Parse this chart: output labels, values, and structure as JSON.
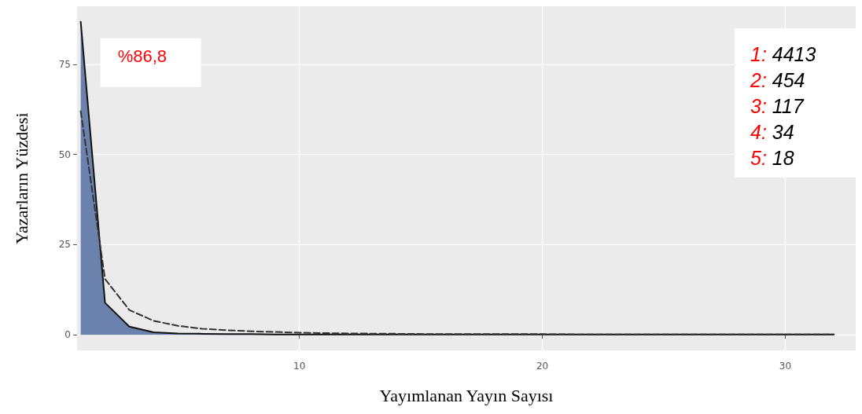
{
  "chart_data": {
    "type": "area",
    "xlabel": "Yayımlanan Yayın Sayısı",
    "ylabel": "Yazarların Yüzdesi",
    "x": [
      1,
      2,
      3,
      4,
      5,
      6,
      7,
      8,
      9,
      10,
      12,
      14,
      16,
      18,
      20,
      22,
      24,
      26,
      28,
      30,
      32
    ],
    "series": [
      {
        "color": "#6b82ad",
        "line_style": "solid",
        "values": [
          86.8,
          8.9,
          2.3,
          0.7,
          0.4,
          0.3,
          0.2,
          0.2,
          0.1,
          0.1,
          0.1,
          0.1,
          0.1,
          0.1,
          0.1,
          0.1,
          0.1,
          0.1,
          0.1,
          0.1,
          0.1
        ]
      },
      {
        "type": "line",
        "color": "#333333",
        "line_style": "dashed",
        "values": [
          62,
          15.5,
          6.9,
          3.9,
          2.5,
          1.7,
          1.3,
          1,
          0.8,
          0.6,
          0.4,
          0.3,
          0.2,
          0.2,
          0.2,
          0.1,
          0.1,
          0.1,
          0.1,
          0.1,
          0.1
        ]
      }
    ],
    "xlim": [
      0.85,
      32.9
    ],
    "xticks": [
      10,
      20,
      30
    ],
    "ylim": [
      -4.3,
      91.1
    ],
    "yticks": [
      0,
      25,
      50,
      75
    ],
    "grid": true,
    "marker": "none",
    "annotations": [
      {
        "text": "%86,8",
        "x": 1,
        "y": 86.8
      },
      "1: 4413",
      "2: 454",
      "3: 117",
      "4: 34",
      "5: 18"
    ]
  }
}
